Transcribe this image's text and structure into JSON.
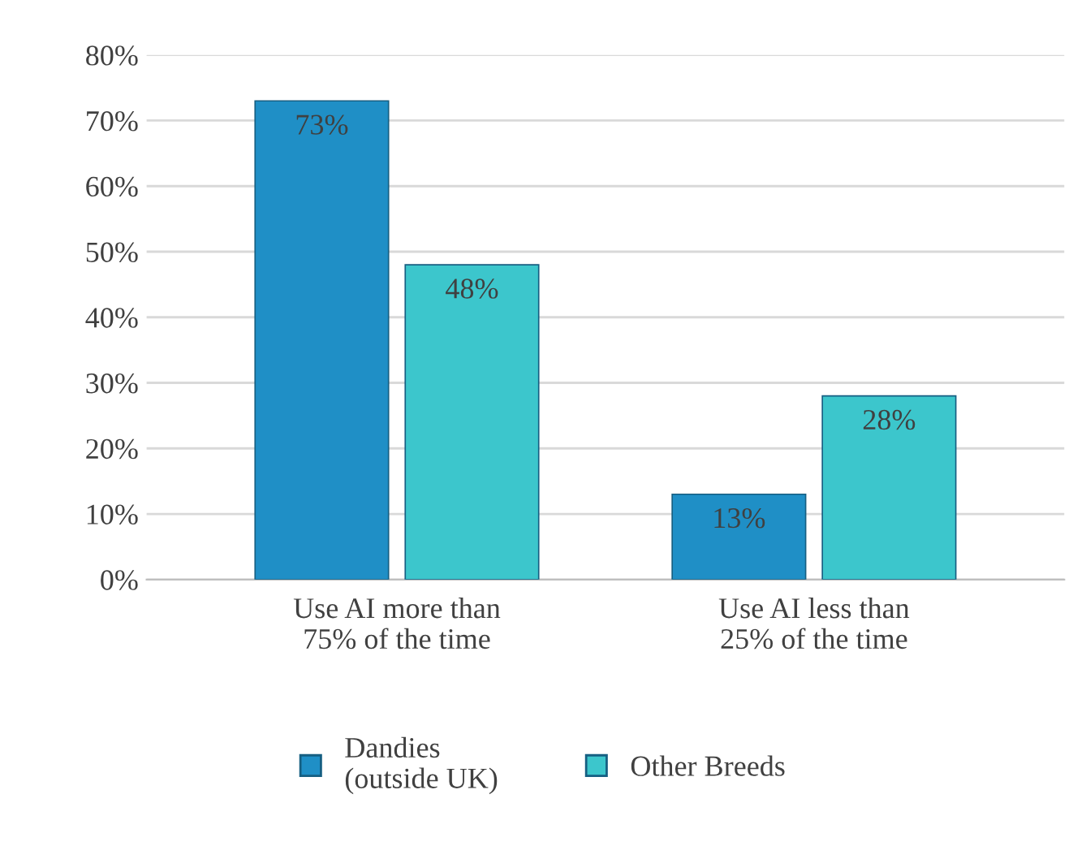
{
  "chart_data": {
    "type": "bar",
    "categories": [
      "Use AI more than\n75% of the time",
      "Use AI less than\n25% of the time"
    ],
    "series": [
      {
        "name": "Dandies\n(outside UK)",
        "color": "#1f8fc6",
        "values": [
          73,
          13
        ],
        "value_labels": [
          "73%",
          "13%"
        ]
      },
      {
        "name": "Other Breeds",
        "color": "#3cc6cc",
        "values": [
          48,
          28
        ],
        "value_labels": [
          "48%",
          "28%"
        ]
      }
    ],
    "ylim": [
      0,
      80
    ],
    "yticks": [
      {
        "value": 0,
        "label": "0%"
      },
      {
        "value": 10,
        "label": "10%"
      },
      {
        "value": 20,
        "label": "20%"
      },
      {
        "value": 30,
        "label": "30%"
      },
      {
        "value": 40,
        "label": "40%"
      },
      {
        "value": 50,
        "label": "50%"
      },
      {
        "value": 60,
        "label": "60%"
      },
      {
        "value": 70,
        "label": "70%"
      },
      {
        "value": 80,
        "label": "80%"
      }
    ],
    "grid": "y",
    "legend": "bottom"
  }
}
